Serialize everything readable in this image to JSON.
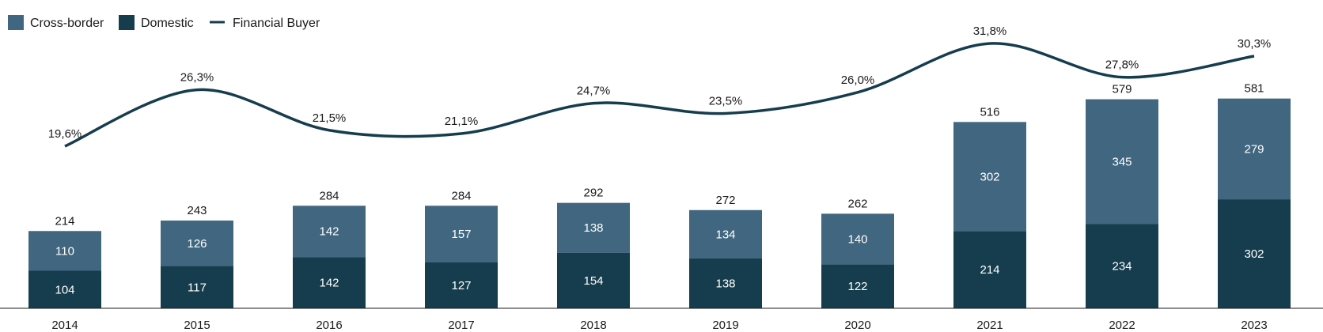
{
  "chart_data": {
    "type": "bar",
    "stacked": true,
    "categories": [
      "2014",
      "2015",
      "2016",
      "2017",
      "2018",
      "2019",
      "2020",
      "2021",
      "2022",
      "2023"
    ],
    "series": [
      {
        "name": "Domestic",
        "values": [
          104,
          117,
          142,
          127,
          154,
          138,
          122,
          214,
          234,
          302
        ],
        "color": "#163d4d"
      },
      {
        "name": "Cross-border",
        "values": [
          110,
          126,
          142,
          157,
          138,
          134,
          140,
          302,
          345,
          279
        ],
        "color": "#41667f"
      }
    ],
    "totals": [
      214,
      243,
      284,
      284,
      292,
      272,
      262,
      516,
      579,
      581
    ],
    "line_series": {
      "name": "Financial Buyer",
      "values": [
        19.6,
        26.3,
        21.5,
        21.1,
        24.7,
        23.5,
        26.0,
        31.8,
        27.8,
        30.3
      ],
      "labels": [
        "19,6%",
        "26,3%",
        "21,5%",
        "21,1%",
        "24,7%",
        "23,5%",
        "26,0%",
        "31,8%",
        "27,8%",
        "30,3%"
      ],
      "color": "#163d4d",
      "ylim": [
        0,
        35
      ]
    },
    "legend": {
      "position": "top-left",
      "items": [
        {
          "label": "Cross-border",
          "color": "#41667f",
          "shape": "square"
        },
        {
          "label": "Domestic",
          "color": "#163d4d",
          "shape": "square"
        },
        {
          "label": "Financial Buyer",
          "color": "#163d4d",
          "shape": "line"
        }
      ]
    },
    "title": "",
    "xlabel": "",
    "ylabel": "",
    "ylim": [
      0,
      600
    ],
    "grid": false
  }
}
